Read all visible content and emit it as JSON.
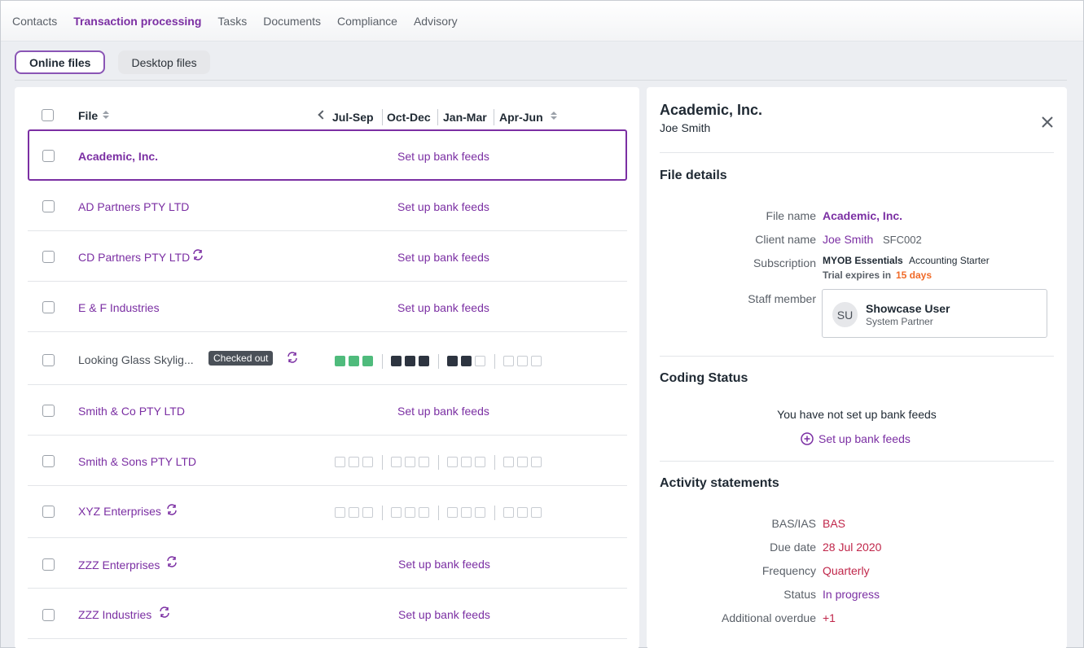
{
  "nav": {
    "items": [
      {
        "label": "Contacts"
      },
      {
        "label": "Transaction processing"
      },
      {
        "label": "Tasks"
      },
      {
        "label": "Documents"
      },
      {
        "label": "Compliance"
      },
      {
        "label": "Advisory"
      }
    ],
    "active": "Transaction processing"
  },
  "filetabs": {
    "online": "Online files",
    "desktop": "Desktop files"
  },
  "table": {
    "file_header": "File",
    "periods": [
      "Jul-Sep",
      "Oct-Dec",
      "Jan-Mar",
      "Apr-Jun"
    ],
    "rows": [
      {
        "name": "Academic, Inc.",
        "action": "Set up bank feeds"
      },
      {
        "name": "AD Partners PTY LTD",
        "action": "Set up bank feeds"
      },
      {
        "name": "CD Partners PTY LTD",
        "action": "Set up bank feeds"
      },
      {
        "name": "E & F Industries",
        "action": "Set up bank feeds"
      },
      {
        "name": "Looking Glass Skylig...",
        "badge": "Checked out"
      },
      {
        "name": "Smith & Co PTY LTD",
        "action": "Set up bank feeds"
      },
      {
        "name": "Smith & Sons PTY LTD"
      },
      {
        "name": "XYZ Enterprises"
      },
      {
        "name": "ZZZ Enterprises",
        "action": "Set up bank feeds"
      },
      {
        "name": "ZZZ Industries",
        "action": "Set up bank feeds"
      }
    ]
  },
  "detail": {
    "title": "Academic, Inc.",
    "subtitle": "Joe Smith",
    "file_details_heading": "File details",
    "file_name_label": "File name",
    "file_name": "Academic, Inc.",
    "client_name_label": "Client name",
    "client_name": "Joe Smith",
    "client_code": "SFC002",
    "subscription_label": "Subscription",
    "subscription_product": "MYOB Essentials",
    "subscription_plan": "Accounting Starter",
    "trial_prefix": "Trial expires in",
    "trial_days": "15 days",
    "staff_label": "Staff member",
    "staff_initials": "SU",
    "staff_name": "Showcase User",
    "staff_role": "System Partner",
    "coding_heading": "Coding Status",
    "coding_message": "You have not set up bank feeds",
    "coding_action": "Set up bank feeds",
    "activity_heading": "Activity statements",
    "basias_label": "BAS/IAS",
    "basias": "BAS",
    "due_label": "Due date",
    "due": "28 Jul 2020",
    "freq_label": "Frequency",
    "freq": "Quarterly",
    "status_label": "Status",
    "status": "In progress",
    "overdue_label": "Additional overdue",
    "overdue": "+1"
  },
  "colors": {
    "accent": "#7b2fa3",
    "alert_red": "#c0264a",
    "trial_orange": "#f06a28",
    "status_green": "#4fbb7c",
    "status_dark": "#2d3440"
  }
}
